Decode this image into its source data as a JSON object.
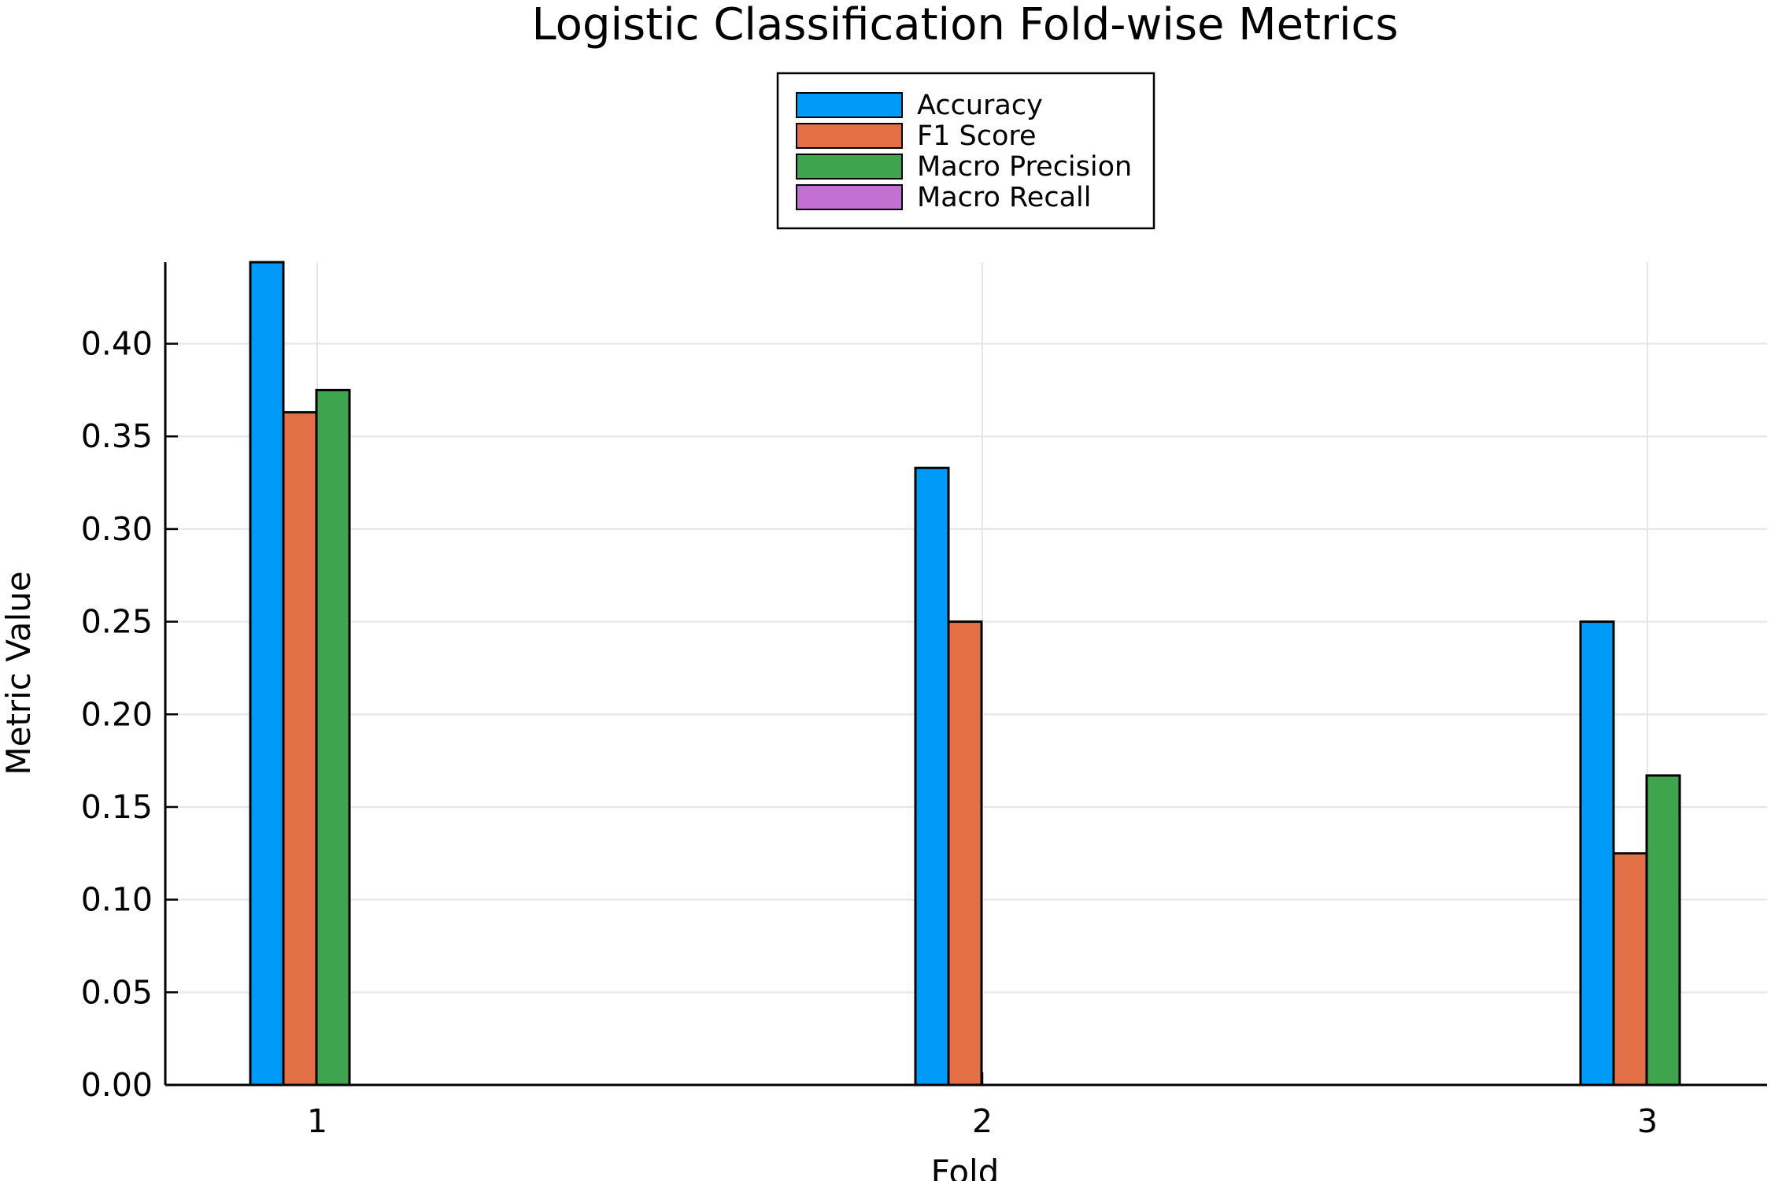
{
  "chart_data": {
    "type": "bar",
    "title": "Logistic Classification Fold-wise Metrics",
    "xlabel": "Fold",
    "ylabel": "Metric Value",
    "categories": [
      "1",
      "2",
      "3"
    ],
    "y_ticks": [
      "0.00",
      "0.05",
      "0.10",
      "0.15",
      "0.20",
      "0.25",
      "0.30",
      "0.35",
      "0.40"
    ],
    "ylim": [
      0,
      0.444
    ],
    "grid": true,
    "legend_position": "top-center",
    "series": [
      {
        "name": "Accuracy",
        "color": "#009af9",
        "values": [
          0.444,
          0.333,
          0.25
        ]
      },
      {
        "name": "F1 Score",
        "color": "#e26f46",
        "values": [
          0.363,
          0.25,
          0.125
        ]
      },
      {
        "name": "Macro Precision",
        "color": "#3ea44e",
        "values": [
          0.375,
          0.0,
          0.167
        ]
      },
      {
        "name": "Macro Recall",
        "color": "#c271d2",
        "values": [
          0.0,
          0.0,
          0.0
        ]
      }
    ]
  }
}
